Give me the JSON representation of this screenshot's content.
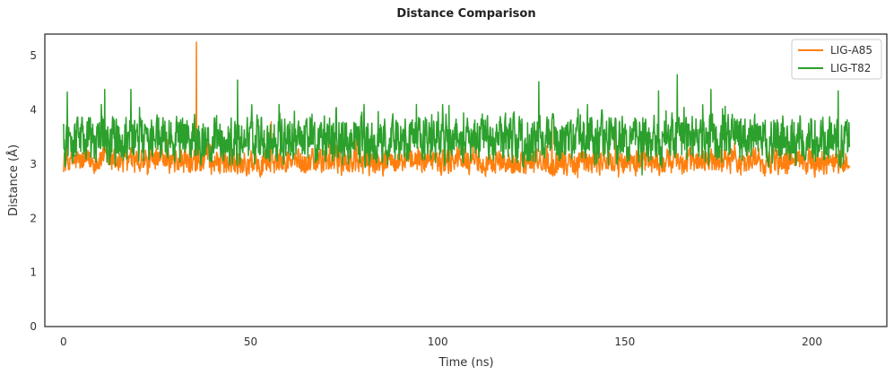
{
  "chart_data": {
    "type": "line",
    "title": "Distance Comparison",
    "xlabel": "Time (ns)",
    "ylabel": "Distance (Å)",
    "xlim": [
      -5,
      220
    ],
    "ylim": [
      0,
      5.4
    ],
    "xticks": [
      0,
      50,
      100,
      150,
      200
    ],
    "yticks": [
      0,
      1,
      2,
      3,
      4,
      5
    ],
    "grid": false,
    "legend_position": "top-right",
    "x_range": [
      0,
      210
    ],
    "series": [
      {
        "name": "LIG-A85",
        "color": "#ff7f0e",
        "baseline": 3.05,
        "noise_min": 2.75,
        "noise_max": 3.45,
        "spikes": [
          {
            "x": 35.5,
            "y": 5.25
          },
          {
            "x": 32.5,
            "y": 3.72
          },
          {
            "x": 55.5,
            "y": 3.78
          },
          {
            "x": 130.5,
            "y": 3.78
          },
          {
            "x": 147.5,
            "y": 3.65
          }
        ]
      },
      {
        "name": "LIG-T82",
        "color": "#2ca02c",
        "baseline": 3.45,
        "noise_min": 2.8,
        "noise_max": 4.1,
        "spikes": [
          {
            "x": 1.0,
            "y": 4.33
          },
          {
            "x": 11.0,
            "y": 4.38
          },
          {
            "x": 18.0,
            "y": 4.38
          },
          {
            "x": 46.5,
            "y": 4.55
          },
          {
            "x": 127.0,
            "y": 4.52
          },
          {
            "x": 159.0,
            "y": 4.35
          },
          {
            "x": 164.0,
            "y": 4.65
          },
          {
            "x": 173.0,
            "y": 4.38
          },
          {
            "x": 207.0,
            "y": 4.35
          }
        ]
      }
    ]
  }
}
